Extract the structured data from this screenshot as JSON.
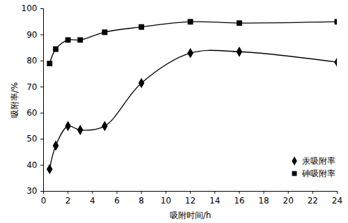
{
  "chart_data": {
    "type": "line",
    "x_label": "吸附时间/h",
    "y_label": "吸附率/%",
    "x": [
      0.5,
      1,
      2,
      3,
      5,
      8,
      12,
      16,
      24
    ],
    "series": [
      {
        "name": "汞吸附率",
        "color": "#000000",
        "marker": "diamond",
        "values": [
          38.5,
          47.5,
          55,
          53.5,
          55,
          71.5,
          83,
          83.5,
          79.5
        ]
      },
      {
        "name": "砷吸附率",
        "color": "#000000",
        "marker": "square",
        "values": [
          79,
          84.5,
          88,
          88,
          91,
          93,
          95,
          94.5,
          95
        ]
      }
    ],
    "xlim": [
      0,
      24
    ],
    "xticks": [
      0,
      2,
      4,
      6,
      8,
      10,
      12,
      14,
      16,
      18,
      20,
      22,
      24
    ],
    "ylim": [
      30,
      100
    ],
    "yticks": [
      30,
      40,
      50,
      60,
      70,
      80,
      90,
      100
    ],
    "grid": false,
    "legend": "bottom-right"
  }
}
